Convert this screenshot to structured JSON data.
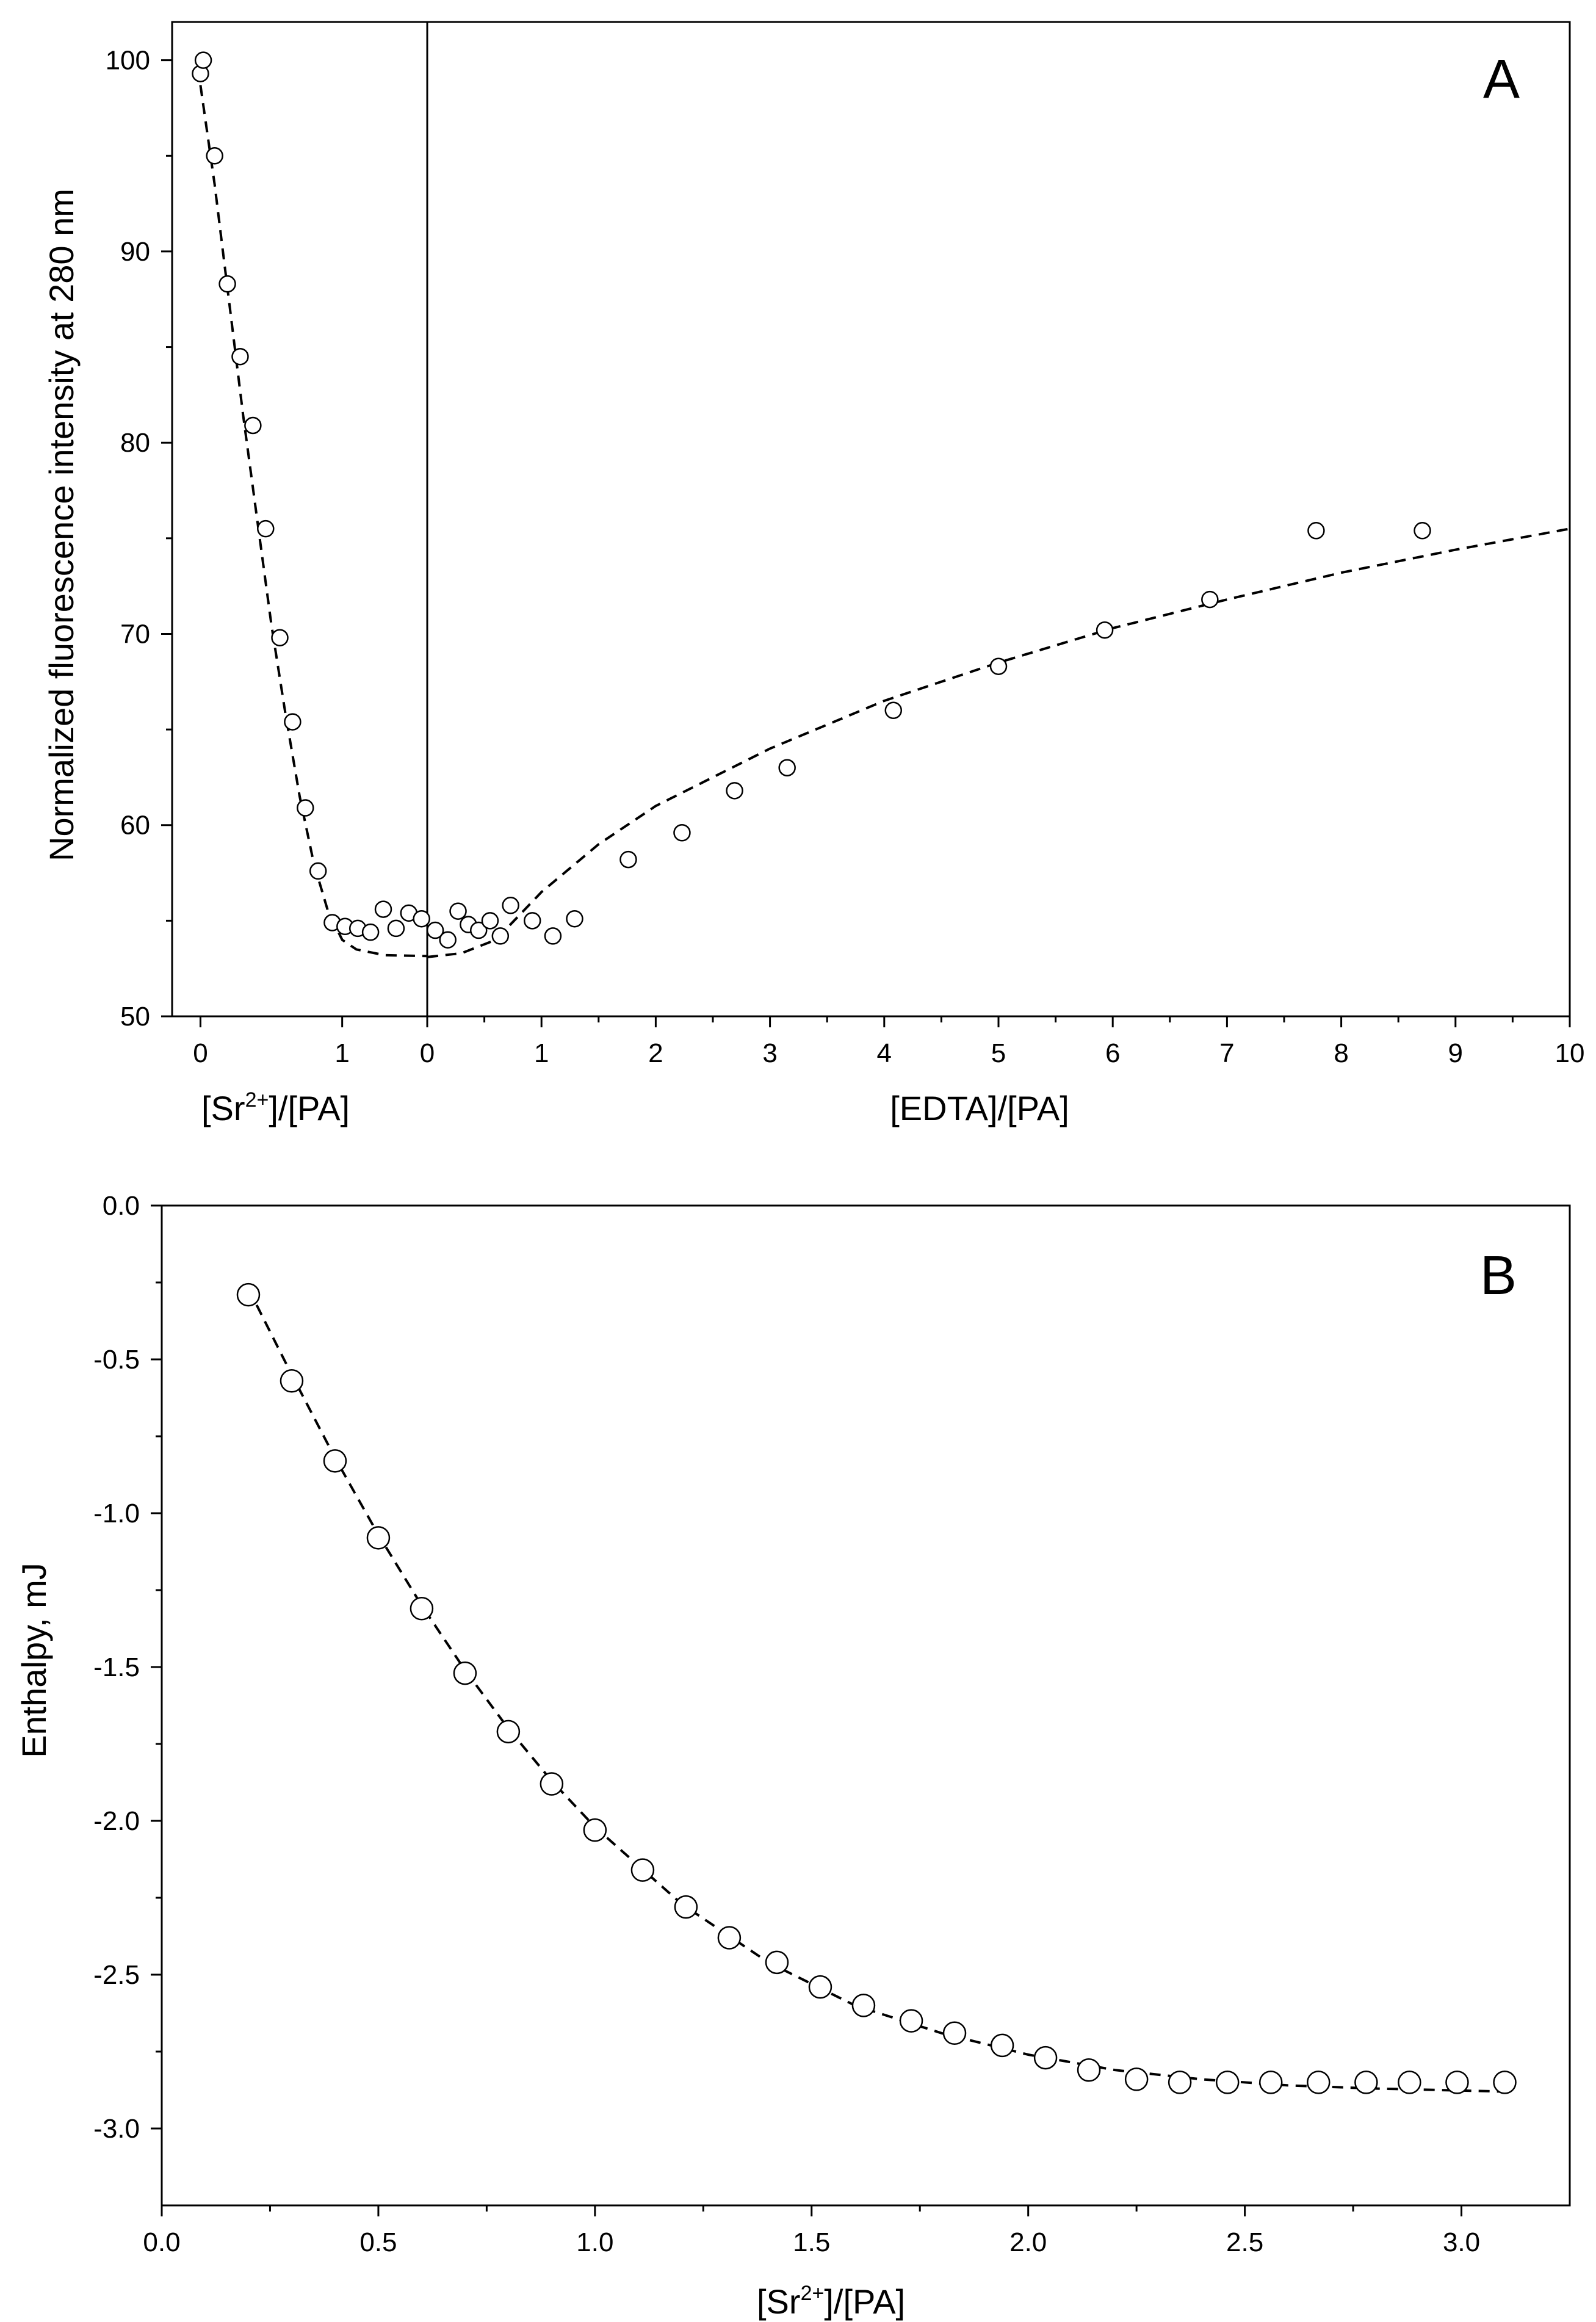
{
  "chart_data": [
    {
      "type": "scatter",
      "panel_label": "A",
      "ylabel": "Normalized fluorescence intensity at 280 nm",
      "ylim": [
        50,
        102
      ],
      "yticks": [
        50,
        60,
        70,
        80,
        90,
        100
      ],
      "x_segments": [
        {
          "xlabel_parts": [
            "[Sr",
            "2+",
            "]/[PA]"
          ],
          "xlim": [
            -0.2,
            1.6
          ],
          "xticks": [
            0,
            1
          ],
          "points": [
            [
              0.0,
              99.3
            ],
            [
              0.02,
              100.0
            ],
            [
              0.1,
              95.0
            ],
            [
              0.19,
              88.3
            ],
            [
              0.28,
              84.5
            ],
            [
              0.37,
              80.9
            ],
            [
              0.46,
              75.5
            ],
            [
              0.56,
              69.8
            ],
            [
              0.65,
              65.4
            ],
            [
              0.74,
              60.9
            ],
            [
              0.83,
              57.6
            ],
            [
              0.93,
              54.9
            ],
            [
              1.02,
              54.7
            ],
            [
              1.11,
              54.6
            ],
            [
              1.2,
              54.4
            ],
            [
              1.29,
              55.6
            ],
            [
              1.38,
              54.6
            ],
            [
              1.47,
              55.4
            ],
            [
              1.56,
              55.1
            ]
          ],
          "fit": [
            [
              0.0,
              98.7
            ],
            [
              0.1,
              93.5
            ],
            [
              0.2,
              87.5
            ],
            [
              0.3,
              81.5
            ],
            [
              0.4,
              76.0
            ],
            [
              0.5,
              70.5
            ],
            [
              0.6,
              65.8
            ],
            [
              0.7,
              61.5
            ],
            [
              0.8,
              58.0
            ],
            [
              0.9,
              55.5
            ],
            [
              1.0,
              54.0
            ],
            [
              1.1,
              53.5
            ],
            [
              1.3,
              53.2
            ],
            [
              1.6,
              53.15
            ]
          ]
        },
        {
          "xlabel": "[EDTA]/[PA]",
          "xlim": [
            0,
            10
          ],
          "xticks": [
            0,
            1,
            2,
            3,
            4,
            5,
            6,
            7,
            8,
            9,
            10
          ],
          "points": [
            [
              0.07,
              54.5
            ],
            [
              0.18,
              54.0
            ],
            [
              0.27,
              55.5
            ],
            [
              0.36,
              54.8
            ],
            [
              0.45,
              54.5
            ],
            [
              0.55,
              55.0
            ],
            [
              0.64,
              54.2
            ],
            [
              0.73,
              55.8
            ],
            [
              0.92,
              55.0
            ],
            [
              1.1,
              54.2
            ],
            [
              1.29,
              55.1
            ],
            [
              1.76,
              58.2
            ],
            [
              2.23,
              59.6
            ],
            [
              2.69,
              61.8
            ],
            [
              3.15,
              63.0
            ],
            [
              4.08,
              66.0
            ],
            [
              5.0,
              68.3
            ],
            [
              5.93,
              70.2
            ],
            [
              6.85,
              71.8
            ],
            [
              7.78,
              75.4
            ],
            [
              8.71,
              75.4
            ]
          ],
          "fit": [
            [
              0.0,
              53.1
            ],
            [
              0.3,
              53.3
            ],
            [
              0.6,
              54.0
            ],
            [
              1.0,
              56.5
            ],
            [
              1.5,
              59.0
            ],
            [
              2.0,
              61.0
            ],
            [
              3.0,
              64.0
            ],
            [
              4.0,
              66.5
            ],
            [
              5.0,
              68.5
            ],
            [
              6.0,
              70.3
            ],
            [
              7.0,
              71.8
            ],
            [
              8.0,
              73.2
            ],
            [
              9.0,
              74.4
            ],
            [
              10.0,
              75.5
            ]
          ]
        }
      ]
    },
    {
      "type": "scatter",
      "panel_label": "B",
      "xlabel_parts": [
        "[Sr",
        "2+",
        "]/[PA]"
      ],
      "ylabel": "Enthalpy, mJ",
      "xlim": [
        0.0,
        3.25
      ],
      "ylim": [
        -3.25,
        0.0
      ],
      "xticks": [
        0.0,
        0.5,
        1.0,
        1.5,
        2.0,
        2.5,
        3.0
      ],
      "xtick_labels": [
        "0.0",
        "0.5",
        "1.0",
        "1.5",
        "2.0",
        "2.5",
        "3.0"
      ],
      "yticks": [
        0.0,
        -0.5,
        -1.0,
        -1.5,
        -2.0,
        -2.5,
        -3.0
      ],
      "ytick_labels": [
        "0.0",
        "-0.5",
        "-1.0",
        "-1.5",
        "-2.0",
        "-2.5",
        "-3.0"
      ],
      "points": [
        [
          0.2,
          -0.29
        ],
        [
          0.3,
          -0.57
        ],
        [
          0.4,
          -0.83
        ],
        [
          0.5,
          -1.08
        ],
        [
          0.6,
          -1.31
        ],
        [
          0.7,
          -1.52
        ],
        [
          0.8,
          -1.71
        ],
        [
          0.9,
          -1.88
        ],
        [
          1.0,
          -2.03
        ],
        [
          1.11,
          -2.16
        ],
        [
          1.21,
          -2.28
        ],
        [
          1.31,
          -2.38
        ],
        [
          1.42,
          -2.46
        ],
        [
          1.52,
          -2.54
        ],
        [
          1.62,
          -2.6
        ],
        [
          1.73,
          -2.65
        ],
        [
          1.83,
          -2.69
        ],
        [
          1.94,
          -2.73
        ],
        [
          2.04,
          -2.77
        ],
        [
          2.14,
          -2.81
        ],
        [
          2.25,
          -2.84
        ],
        [
          2.35,
          -2.85
        ],
        [
          2.46,
          -2.85
        ],
        [
          2.56,
          -2.85
        ],
        [
          2.67,
          -2.85
        ],
        [
          2.78,
          -2.85
        ],
        [
          2.88,
          -2.85
        ],
        [
          2.99,
          -2.85
        ],
        [
          3.1,
          -2.85
        ]
      ],
      "fit": [
        [
          0.2,
          -0.27
        ],
        [
          0.3,
          -0.55
        ],
        [
          0.4,
          -0.82
        ],
        [
          0.5,
          -1.07
        ],
        [
          0.6,
          -1.3
        ],
        [
          0.7,
          -1.51
        ],
        [
          0.8,
          -1.7
        ],
        [
          0.9,
          -1.87
        ],
        [
          1.0,
          -2.02
        ],
        [
          1.2,
          -2.27
        ],
        [
          1.4,
          -2.46
        ],
        [
          1.6,
          -2.6
        ],
        [
          1.8,
          -2.69
        ],
        [
          2.0,
          -2.76
        ],
        [
          2.2,
          -2.81
        ],
        [
          2.4,
          -2.84
        ],
        [
          2.6,
          -2.86
        ],
        [
          2.8,
          -2.87
        ],
        [
          3.1,
          -2.88
        ]
      ]
    }
  ]
}
